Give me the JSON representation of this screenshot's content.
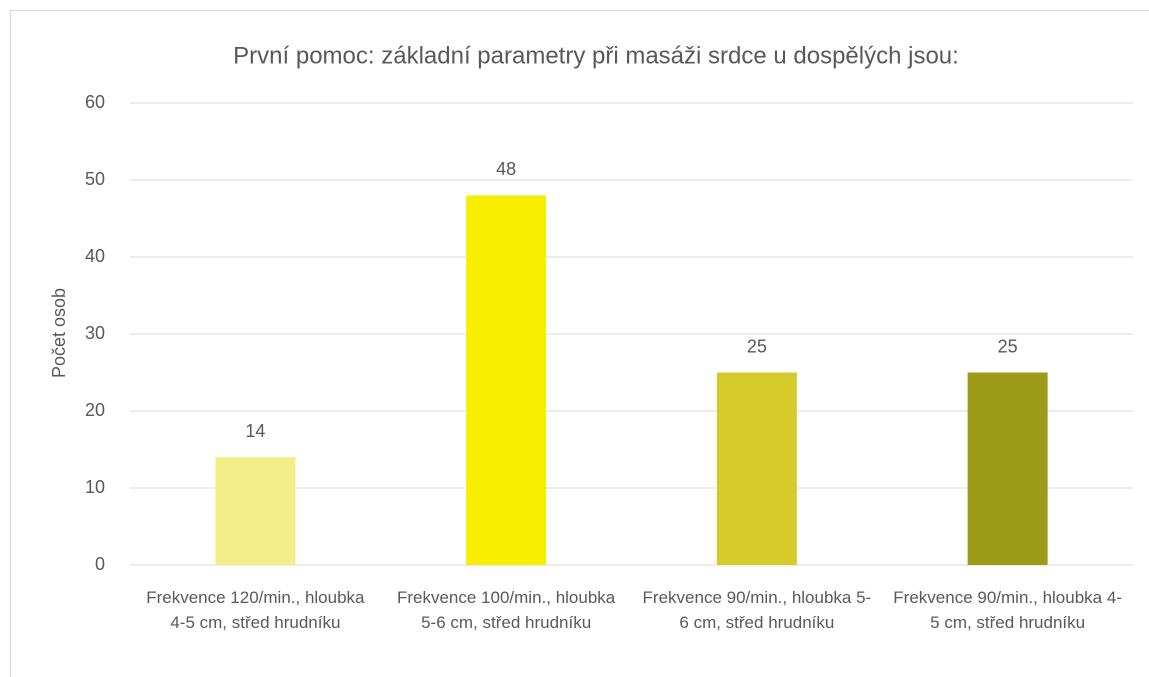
{
  "chart_data": {
    "type": "bar",
    "title": "První pomoc: základní parametry při masáži srdce u dospělých jsou:",
    "y_label": "Počet osob",
    "categories": [
      "Frekvence 120/min., hloubka 4-5 cm, střed hrudníku",
      "Frekvence 100/min., hloubka 5-6 cm, střed hrudníku",
      "Frekvence 90/min., hloubka 5-6 cm, střed hrudníku",
      "Frekvence 90/min., hloubka 4-5 cm, střed hrudníku"
    ],
    "values": [
      14,
      48,
      25,
      25
    ],
    "colors": [
      "#f4ee8a",
      "#f8ee00",
      "#d4ca2a",
      "#9d9b18"
    ],
    "ylim": [
      0,
      60
    ],
    "yticks": [
      0,
      10,
      20,
      30,
      40,
      50,
      60
    ],
    "grid": true
  }
}
